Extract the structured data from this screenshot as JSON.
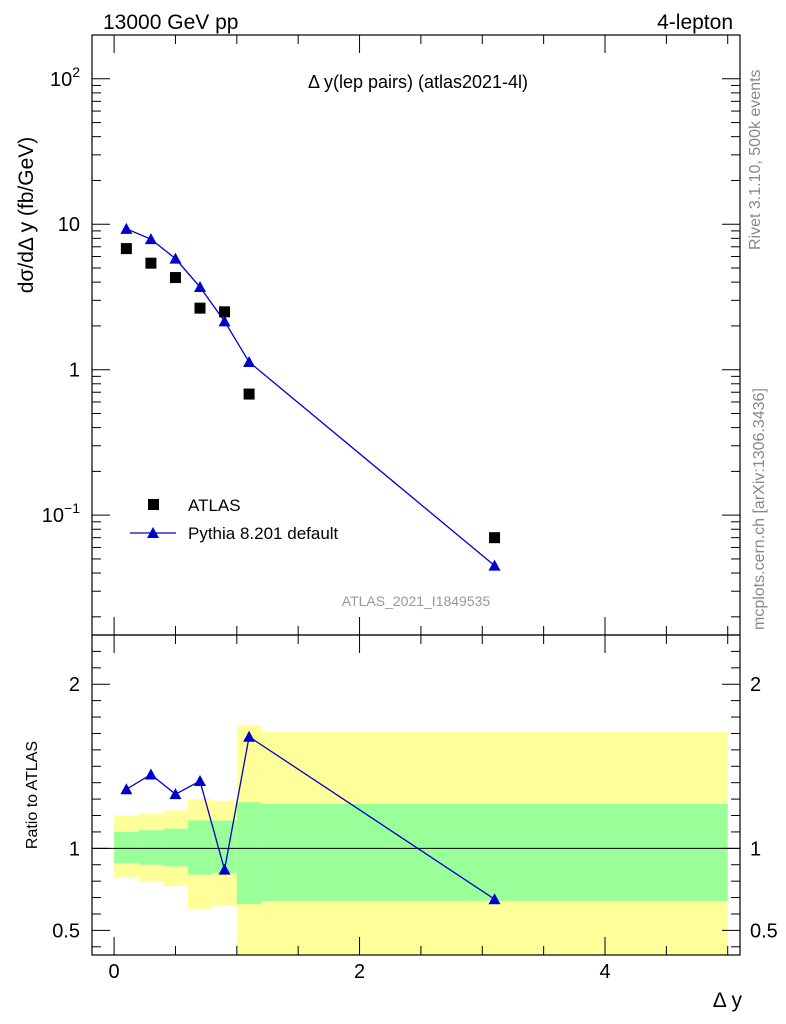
{
  "header": {
    "energy": "13000 GeV pp",
    "process": "4-lepton"
  },
  "side_labels": {
    "rivet": "Rivet 3.1.10,  500k events",
    "mcplots": "mcplots.cern.ch [arXiv:1306.3436]"
  },
  "main_title": "Δ y(lep pairs) (atlas2021-4l)",
  "analysis_id": "ATLAS_2021_I1849535",
  "legend": {
    "data_label": "ATLAS",
    "mc_label": "Pythia 8.201 default"
  },
  "colors": {
    "data": "#000000",
    "mc": "#0000cc",
    "band_inner": "#99ff99",
    "band_outer": "#ffff99"
  },
  "chart_data": [
    {
      "type": "scatter",
      "panel": "main",
      "ylabel": "dσ/dΔ y (fb/GeV)",
      "yscale": "log",
      "ylim": [
        0.015,
        200
      ],
      "xlim": [
        -0.18,
        5.1
      ],
      "ytick_labels": [
        "10^{-1}",
        "1",
        "10",
        "10^{2}"
      ],
      "series": [
        {
          "name": "ATLAS",
          "x": [
            0.1,
            0.3,
            0.5,
            0.7,
            0.9,
            1.1,
            3.1
          ],
          "y": [
            6.8,
            5.4,
            4.3,
            2.65,
            2.5,
            0.68,
            0.07
          ]
        },
        {
          "name": "Pythia 8.201 default",
          "x": [
            0.1,
            0.3,
            0.5,
            0.7,
            0.9,
            1.1,
            3.1
          ],
          "y": [
            9.3,
            7.9,
            5.8,
            3.7,
            2.15,
            1.13,
            0.045
          ]
        }
      ]
    },
    {
      "type": "line",
      "panel": "ratio",
      "ylabel": "Ratio to ATLAS",
      "ylim": [
        0.35,
        2.3
      ],
      "xlim": [
        -0.18,
        5.1
      ],
      "xlabel": "Δ y",
      "ytick_labels": [
        "0.5",
        "1",
        "2"
      ],
      "xtick_labels": [
        "0",
        "2",
        "4"
      ],
      "ratio_points": {
        "x": [
          0.1,
          0.3,
          0.5,
          0.7,
          0.9,
          1.1,
          3.1
        ],
        "y": [
          1.36,
          1.45,
          1.33,
          1.41,
          0.87,
          1.68,
          0.69
        ],
        "err": [
          0.0,
          0.0,
          0.0,
          0.0,
          0.0,
          0.0,
          0.02
        ]
      },
      "bands": [
        {
          "x0": 0.0,
          "x1": 0.2,
          "inner": [
            0.91,
            1.1
          ],
          "outer": [
            0.82,
            1.2
          ]
        },
        {
          "x0": 0.2,
          "x1": 0.4,
          "inner": [
            0.9,
            1.11
          ],
          "outer": [
            0.8,
            1.21
          ]
        },
        {
          "x0": 0.4,
          "x1": 0.6,
          "inner": [
            0.89,
            1.12
          ],
          "outer": [
            0.77,
            1.23
          ]
        },
        {
          "x0": 0.6,
          "x1": 0.8,
          "inner": [
            0.84,
            1.17
          ],
          "outer": [
            0.63,
            1.3
          ]
        },
        {
          "x0": 0.8,
          "x1": 1.0,
          "inner": [
            0.85,
            1.17
          ],
          "outer": [
            0.65,
            1.29
          ]
        },
        {
          "x0": 1.0,
          "x1": 1.2,
          "inner": [
            0.66,
            1.28
          ],
          "outer": [
            0.35,
            1.75
          ]
        },
        {
          "x0": 1.2,
          "x1": 5.0,
          "inner": [
            0.68,
            1.27
          ],
          "outer": [
            0.35,
            1.71
          ]
        }
      ]
    }
  ]
}
